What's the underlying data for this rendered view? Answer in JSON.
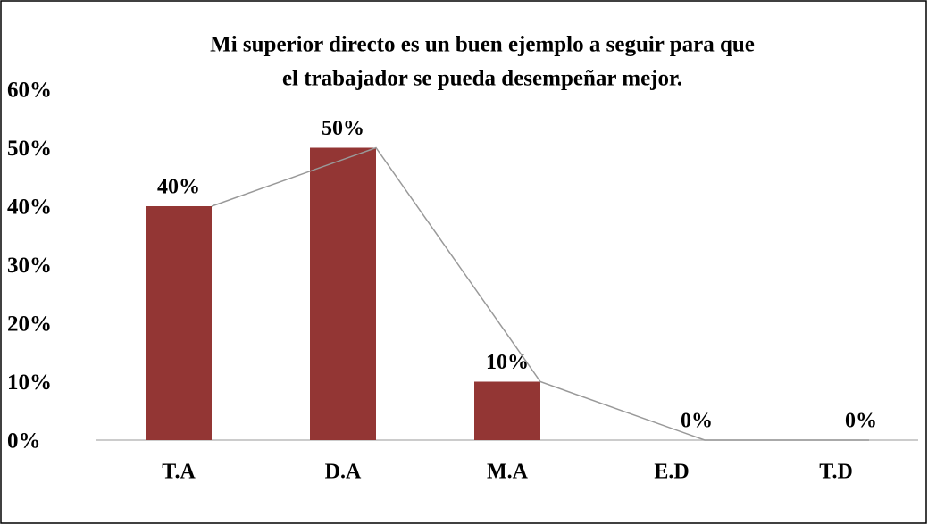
{
  "chart_data": {
    "type": "bar",
    "title": [
      "Mi superior directo es un buen ejemplo a  seguir para que",
      "el trabajador se pueda desempeñar mejor."
    ],
    "categories": [
      "T.A",
      "D.A",
      "M.A",
      "E.D",
      "T.D"
    ],
    "values": [
      40,
      50,
      10,
      0,
      0
    ],
    "value_labels": [
      "40%",
      "50%",
      "10%",
      "0%",
      "0%"
    ],
    "color": "#933634",
    "ylim": [
      0,
      60
    ],
    "yticks": [
      {
        "value": 0,
        "label": "0%"
      },
      {
        "value": 10,
        "label": "10%"
      },
      {
        "value": 20,
        "label": "20%"
      },
      {
        "value": 30,
        "label": "30%"
      },
      {
        "value": 40,
        "label": "40%"
      },
      {
        "value": 50,
        "label": "50%"
      },
      {
        "value": 60,
        "label": "60%"
      }
    ],
    "grid": false
  }
}
